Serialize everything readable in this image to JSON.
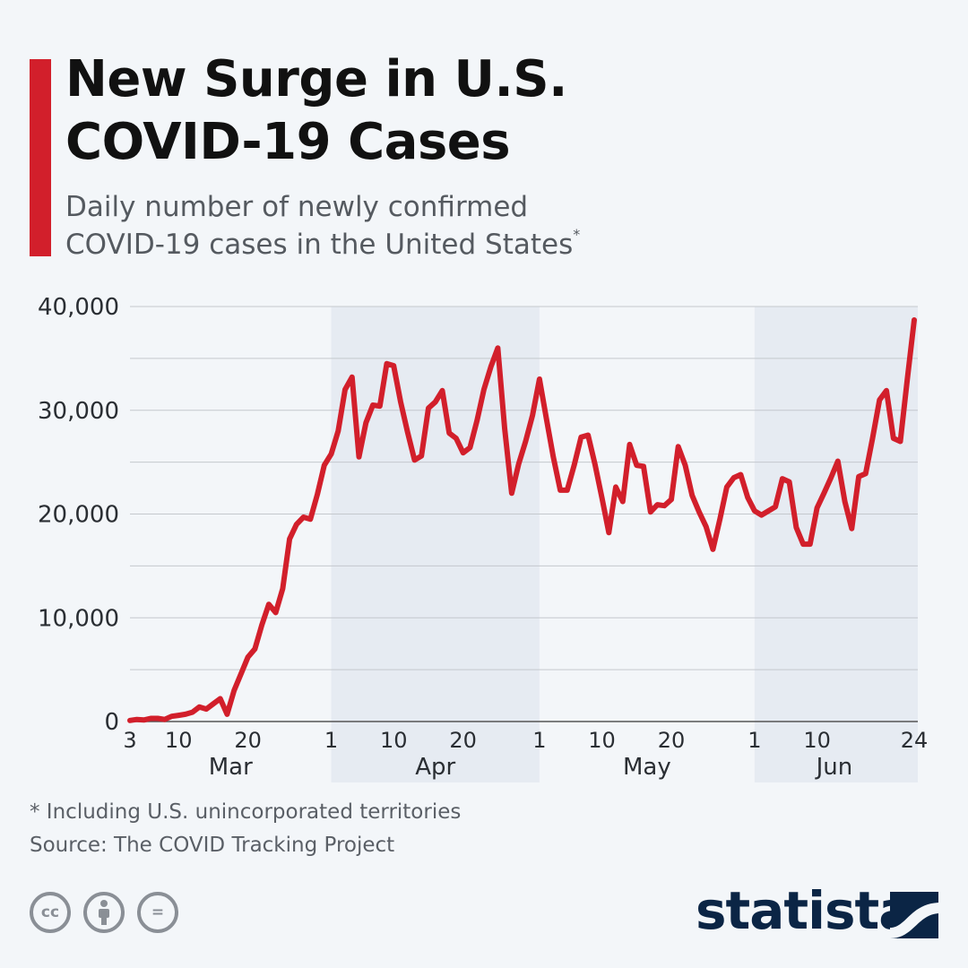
{
  "header": {
    "title_line1": "New Surge in U.S.",
    "title_line2": "COVID-19 Cases",
    "subtitle_line1": "Daily number of newly confirmed",
    "subtitle_line2": "COVID-19 cases in the United States",
    "subtitle_marker": "*"
  },
  "colors": {
    "accent": "#d21f2b",
    "line": "#d21f2b",
    "shade": "#e6ebf2",
    "grid": "#c4c8cd",
    "logo": "#0b2545"
  },
  "chart_data": {
    "type": "line",
    "title": "New Surge in U.S. COVID-19 Cases",
    "subtitle": "Daily number of newly confirmed COVID-19 cases in the United States*",
    "ylim": [
      0,
      40000
    ],
    "y_ticks": [
      0,
      10000,
      20000,
      30000,
      40000
    ],
    "y_tick_labels": [
      "0",
      "10,000",
      "20,000",
      "30,000",
      "40,000"
    ],
    "x_start": "2020-03-03",
    "x_end": "2020-06-24",
    "x_tick_labels": [
      {
        "date": "2020-03-03",
        "label": "3"
      },
      {
        "date": "2020-03-10",
        "label": "10"
      },
      {
        "date": "2020-03-20",
        "label": "20"
      },
      {
        "date": "2020-04-01",
        "label": "1"
      },
      {
        "date": "2020-04-10",
        "label": "10"
      },
      {
        "date": "2020-04-20",
        "label": "20"
      },
      {
        "date": "2020-05-01",
        "label": "1"
      },
      {
        "date": "2020-05-10",
        "label": "10"
      },
      {
        "date": "2020-05-20",
        "label": "20"
      },
      {
        "date": "2020-06-01",
        "label": "1"
      },
      {
        "date": "2020-06-10",
        "label": "10"
      },
      {
        "date": "2020-06-24",
        "label": "24"
      }
    ],
    "months": [
      {
        "label": "Mar",
        "start": "2020-03-03",
        "end": "2020-04-01",
        "shaded": false
      },
      {
        "label": "Apr",
        "start": "2020-04-01",
        "end": "2020-05-01",
        "shaded": true
      },
      {
        "label": "May",
        "start": "2020-05-01",
        "end": "2020-06-01",
        "shaded": false
      },
      {
        "label": "Jun",
        "start": "2020-06-01",
        "end": "2020-06-24",
        "shaded": true
      }
    ],
    "grid": true,
    "series": [
      {
        "points": [
          [
            "2020-03-03",
            100
          ],
          [
            "2020-03-04",
            200
          ],
          [
            "2020-03-05",
            150
          ],
          [
            "2020-03-06",
            300
          ],
          [
            "2020-03-07",
            300
          ],
          [
            "2020-03-08",
            200
          ],
          [
            "2020-03-09",
            500
          ],
          [
            "2020-03-10",
            600
          ],
          [
            "2020-03-11",
            700
          ],
          [
            "2020-03-12",
            900
          ],
          [
            "2020-03-13",
            1400
          ],
          [
            "2020-03-14",
            1200
          ],
          [
            "2020-03-15",
            1700
          ],
          [
            "2020-03-16",
            2200
          ],
          [
            "2020-03-17",
            700
          ],
          [
            "2020-03-18",
            3000
          ],
          [
            "2020-03-19",
            4600
          ],
          [
            "2020-03-20",
            6200
          ],
          [
            "2020-03-21",
            7000
          ],
          [
            "2020-03-22",
            9300
          ],
          [
            "2020-03-23",
            11300
          ],
          [
            "2020-03-24",
            10500
          ],
          [
            "2020-03-25",
            12800
          ],
          [
            "2020-03-26",
            17600
          ],
          [
            "2020-03-27",
            19000
          ],
          [
            "2020-03-28",
            19700
          ],
          [
            "2020-03-29",
            19500
          ],
          [
            "2020-03-30",
            21900
          ],
          [
            "2020-03-31",
            24700
          ],
          [
            "2020-04-01",
            25800
          ],
          [
            "2020-04-02",
            28000
          ],
          [
            "2020-04-03",
            32000
          ],
          [
            "2020-04-04",
            33200
          ],
          [
            "2020-04-05",
            25500
          ],
          [
            "2020-04-06",
            28800
          ],
          [
            "2020-04-07",
            30500
          ],
          [
            "2020-04-08",
            30400
          ],
          [
            "2020-04-09",
            34500
          ],
          [
            "2020-04-10",
            34300
          ],
          [
            "2020-04-11",
            30800
          ],
          [
            "2020-04-12",
            27900
          ],
          [
            "2020-04-13",
            25200
          ],
          [
            "2020-04-14",
            25600
          ],
          [
            "2020-04-15",
            30200
          ],
          [
            "2020-04-16",
            30800
          ],
          [
            "2020-04-17",
            31900
          ],
          [
            "2020-04-18",
            27800
          ],
          [
            "2020-04-19",
            27300
          ],
          [
            "2020-04-20",
            25900
          ],
          [
            "2020-04-21",
            26400
          ],
          [
            "2020-04-22",
            29000
          ],
          [
            "2020-04-23",
            32000
          ],
          [
            "2020-04-24",
            34200
          ],
          [
            "2020-04-25",
            36000
          ],
          [
            "2020-04-26",
            28200
          ],
          [
            "2020-04-27",
            22000
          ],
          [
            "2020-04-28",
            24800
          ],
          [
            "2020-04-29",
            27000
          ],
          [
            "2020-04-30",
            29500
          ],
          [
            "2020-05-01",
            33000
          ],
          [
            "2020-05-02",
            29200
          ],
          [
            "2020-05-03",
            25500
          ],
          [
            "2020-05-04",
            22300
          ],
          [
            "2020-05-05",
            22300
          ],
          [
            "2020-05-06",
            24700
          ],
          [
            "2020-05-07",
            27400
          ],
          [
            "2020-05-08",
            27600
          ],
          [
            "2020-05-09",
            24800
          ],
          [
            "2020-05-10",
            21600
          ],
          [
            "2020-05-11",
            18200
          ],
          [
            "2020-05-12",
            22600
          ],
          [
            "2020-05-13",
            21200
          ],
          [
            "2020-05-14",
            26700
          ],
          [
            "2020-05-15",
            24700
          ],
          [
            "2020-05-16",
            24600
          ],
          [
            "2020-05-17",
            20200
          ],
          [
            "2020-05-18",
            20900
          ],
          [
            "2020-05-19",
            20800
          ],
          [
            "2020-05-20",
            21400
          ],
          [
            "2020-05-21",
            26500
          ],
          [
            "2020-05-22",
            24700
          ],
          [
            "2020-05-23",
            21800
          ],
          [
            "2020-05-24",
            20200
          ],
          [
            "2020-05-25",
            18800
          ],
          [
            "2020-05-26",
            16600
          ],
          [
            "2020-05-27",
            19500
          ],
          [
            "2020-05-28",
            22600
          ],
          [
            "2020-05-29",
            23500
          ],
          [
            "2020-05-30",
            23800
          ],
          [
            "2020-05-31",
            21600
          ],
          [
            "2020-06-01",
            20300
          ],
          [
            "2020-06-02",
            19900
          ],
          [
            "2020-06-03",
            20300
          ],
          [
            "2020-06-04",
            20700
          ],
          [
            "2020-06-05",
            23400
          ],
          [
            "2020-06-06",
            23100
          ],
          [
            "2020-06-07",
            18700
          ],
          [
            "2020-06-08",
            17100
          ],
          [
            "2020-06-09",
            17100
          ],
          [
            "2020-06-10",
            20600
          ],
          [
            "2020-06-11",
            22000
          ],
          [
            "2020-06-12",
            23500
          ],
          [
            "2020-06-13",
            25100
          ],
          [
            "2020-06-14",
            21200
          ],
          [
            "2020-06-15",
            18600
          ],
          [
            "2020-06-16",
            23600
          ],
          [
            "2020-06-17",
            23900
          ],
          [
            "2020-06-18",
            27300
          ],
          [
            "2020-06-19",
            31000
          ],
          [
            "2020-06-20",
            31900
          ],
          [
            "2020-06-21",
            27300
          ],
          [
            "2020-06-22",
            27000
          ],
          [
            "2020-06-23",
            33000
          ],
          [
            "2020-06-24",
            38700
          ]
        ]
      }
    ]
  },
  "footer": {
    "footnote": "* Including U.S. unincorporated territories",
    "source": "Source: The COVID Tracking Project",
    "cc_labels": [
      "cc",
      "i",
      "="
    ],
    "logo_text": "statista"
  }
}
